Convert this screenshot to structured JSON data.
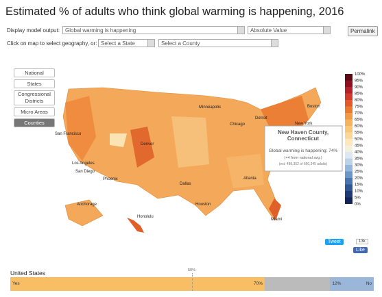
{
  "header": {
    "title": "Estimated % of adults who think global warming is happening, 2016"
  },
  "controls": {
    "display_label": "Display model output:",
    "output_select": "Global warming is happening",
    "mode_select": "Absolute Value",
    "permalink": "Permalink",
    "geo_label": "Click on map to select geography, or:",
    "state_select": "Select a State",
    "county_select": "Select a County"
  },
  "geography_buttons": [
    "National",
    "States",
    "Congressional Districts",
    "Micro Areas",
    "Counties"
  ],
  "active_geography": 4,
  "legend": {
    "labels": [
      "100%",
      "95%",
      "90%",
      "85%",
      "80%",
      "75%",
      "70%",
      "65%",
      "60%",
      "55%",
      "50%",
      "45%",
      "40%",
      "35%",
      "30%",
      "25%",
      "20%",
      "15%",
      "10%",
      "5%",
      "0%"
    ],
    "colors": [
      "#5a0a14",
      "#8e1020",
      "#b5212b",
      "#d03a2a",
      "#e05a2a",
      "#ea7a30",
      "#f09a45",
      "#f5b35c",
      "#f8c777",
      "#fbd898",
      "#fde7bb",
      "#f3f0dc",
      "#dde8f2",
      "#bcd2e8",
      "#95b7d9",
      "#6c96c6",
      "#4a74ae",
      "#2f5592",
      "#1e3a73",
      "#112457"
    ]
  },
  "map": {
    "labels": [
      "San Francisco",
      "Los Angeles",
      "San Diego",
      "Phoenix",
      "Minneapolis",
      "Chicago",
      "Detroit",
      "Boston",
      "New York",
      "Denver",
      "Dallas",
      "Houston",
      "Atlanta",
      "Miami",
      "Honolulu",
      "Anchorage"
    ]
  },
  "tooltip": {
    "title": "New Haven County, Connecticut",
    "line1": "Global warming is happening: 74%",
    "line2": "(+4 from national avg.)",
    "line3": "(est. 489,352 of 660,345 adults)"
  },
  "social": {
    "tweet": "Tweet",
    "like": "Like",
    "count": "13k"
  },
  "summary": {
    "title": "United States",
    "midpoint": {
      "value": 50,
      "label": "50%"
    },
    "segments": [
      {
        "name": "Yes",
        "value": 70,
        "value_label": "70%",
        "color": "#f9bd63"
      },
      {
        "value": 18,
        "color": "#bbbbbb"
      },
      {
        "name": "No",
        "value": 12,
        "value_label": "12%",
        "color": "#9ab6d8"
      }
    ]
  }
}
